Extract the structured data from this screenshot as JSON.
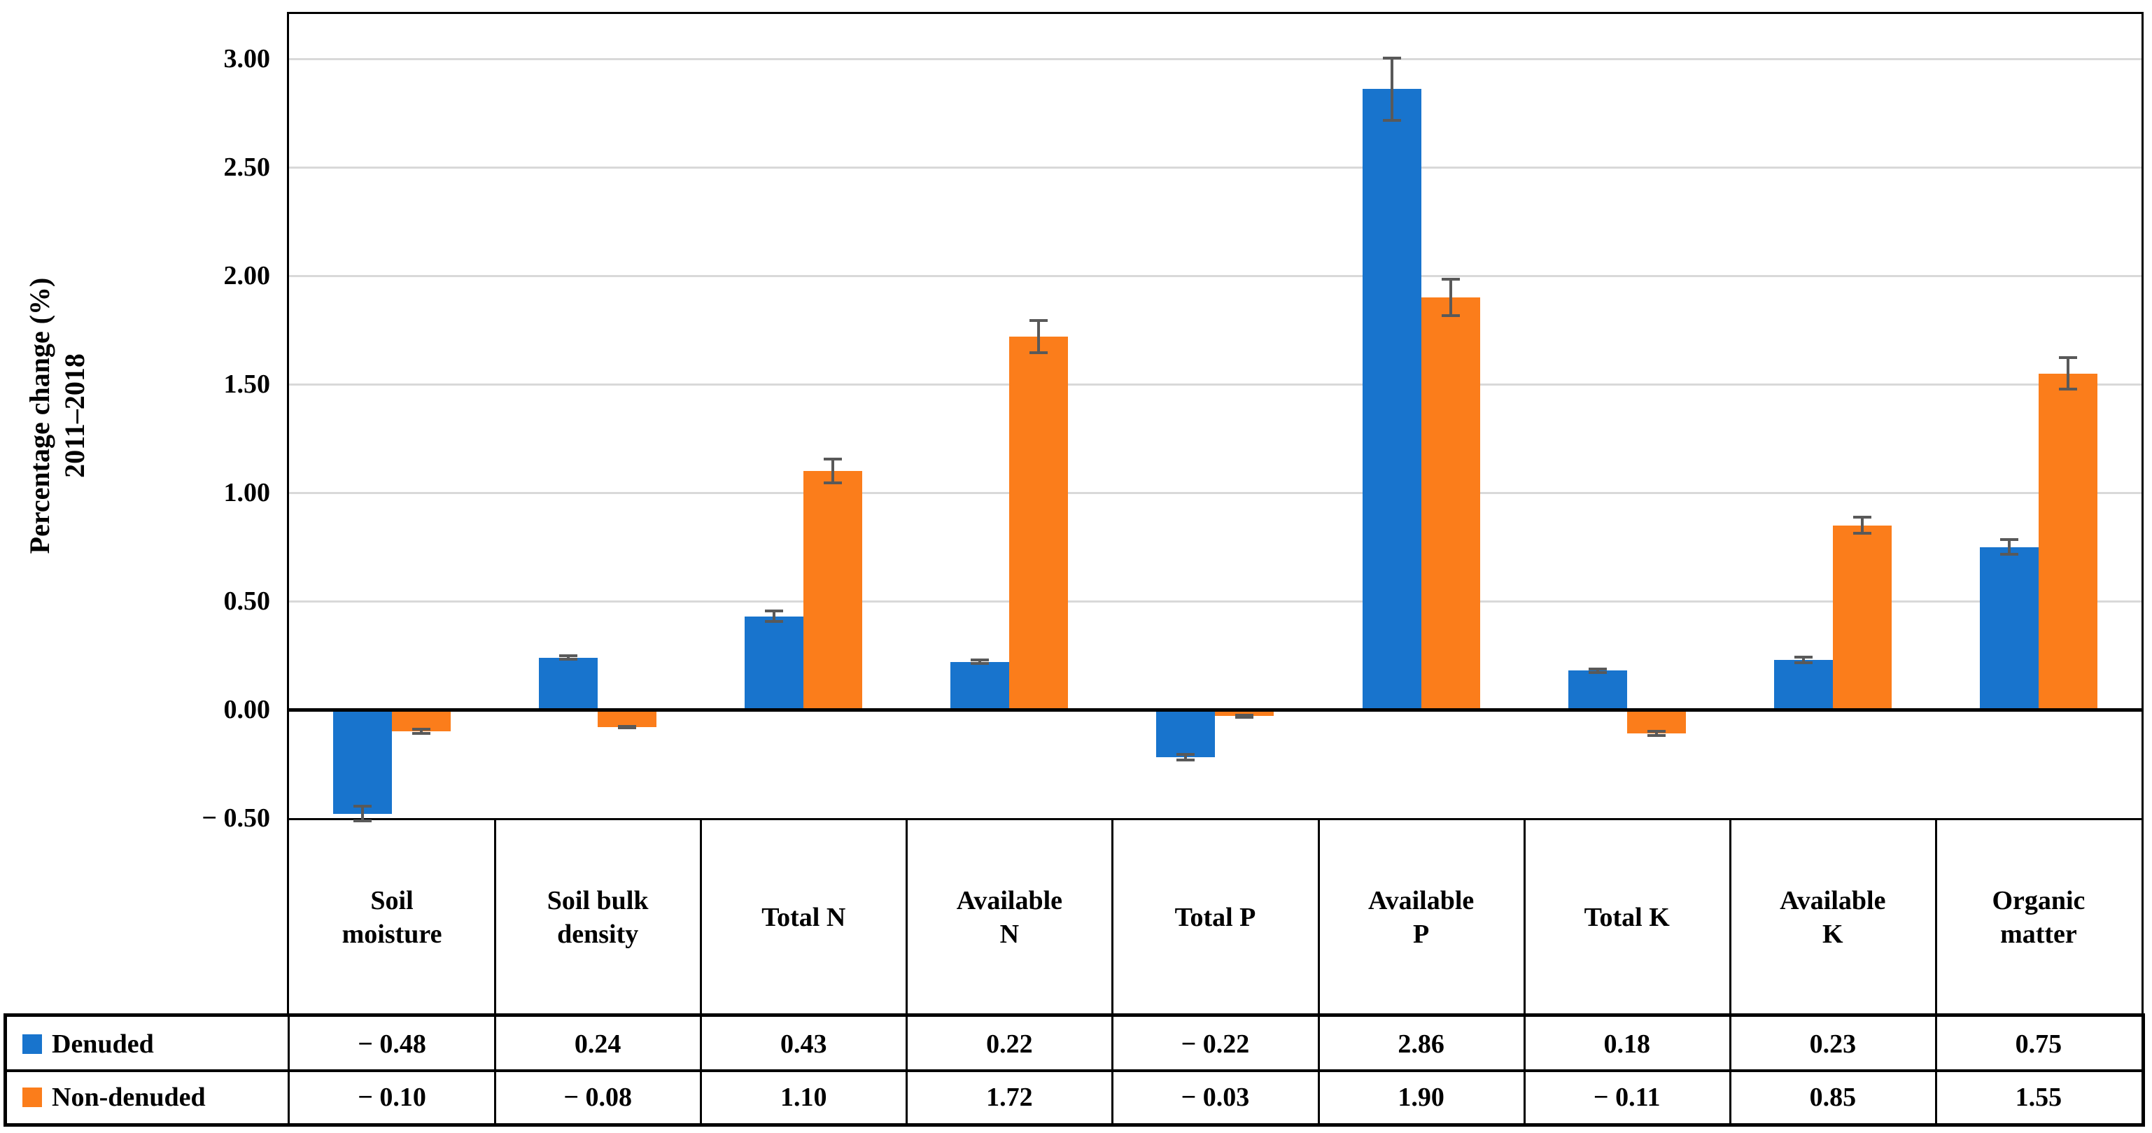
{
  "figure": {
    "background": "#FFFFFF",
    "y_axis_title_line1": "Percentage change (%)",
    "y_axis_title_line2": "2011–2018"
  },
  "chart_data": {
    "type": "bar",
    "title": "",
    "ylabel": "Percentage change (%) 2011–2018",
    "xlabel": "",
    "ylim": [
      -0.5,
      3.2
    ],
    "grid": true,
    "gridline_color": "#D9D9D9",
    "error_bar_color": "#595959",
    "legend_position": "table-left-column",
    "y_ticks": [
      {
        "label": "3.00",
        "value": 3.0
      },
      {
        "label": "2.50",
        "value": 2.5
      },
      {
        "label": "2.00",
        "value": 2.0
      },
      {
        "label": "1.50",
        "value": 1.5
      },
      {
        "label": "1.00",
        "value": 1.0
      },
      {
        "label": "0.50",
        "value": 0.5
      },
      {
        "label": "0.00",
        "value": 0.0
      },
      {
        "label": "− 0.50",
        "value": -0.5
      }
    ],
    "categories": [
      "Soil moisture",
      "Soil bulk density",
      "Total N",
      "Available N",
      "Total P",
      "Available P",
      "Total K",
      "Available K",
      "Organic matter"
    ],
    "category_label_lines": [
      [
        "Soil",
        "moisture"
      ],
      [
        "Soil bulk",
        "density"
      ],
      [
        "Total N"
      ],
      [
        "Available",
        "N"
      ],
      [
        "Total P"
      ],
      [
        "Available",
        "P"
      ],
      [
        "Total K"
      ],
      [
        "Available",
        "K"
      ],
      [
        "Organic",
        "matter"
      ]
    ],
    "series": [
      {
        "name": "Denuded",
        "color": "#1874CD",
        "values": [
          -0.48,
          0.24,
          0.43,
          0.22,
          -0.22,
          2.86,
          0.18,
          0.23,
          0.75
        ],
        "value_labels": [
          "− 0.48",
          "0.24",
          "0.43",
          "0.22",
          "− 0.22",
          "2.86",
          "0.18",
          "0.23",
          "0.75"
        ],
        "errors": [
          0.04,
          0.015,
          0.03,
          0.015,
          0.02,
          0.15,
          0.015,
          0.02,
          0.04
        ]
      },
      {
        "name": "Non-denuded",
        "color": "#FB7D1B",
        "values": [
          -0.1,
          -0.08,
          1.1,
          1.72,
          -0.03,
          1.9,
          -0.11,
          0.85,
          1.55
        ],
        "value_labels": [
          "− 0.10",
          "− 0.08",
          "1.10",
          "1.72",
          "− 0.03",
          "1.90",
          "− 0.11",
          "0.85",
          "1.55"
        ],
        "errors": [
          0.015,
          0.01,
          0.06,
          0.08,
          0.012,
          0.09,
          0.015,
          0.045,
          0.08
        ]
      }
    ]
  }
}
